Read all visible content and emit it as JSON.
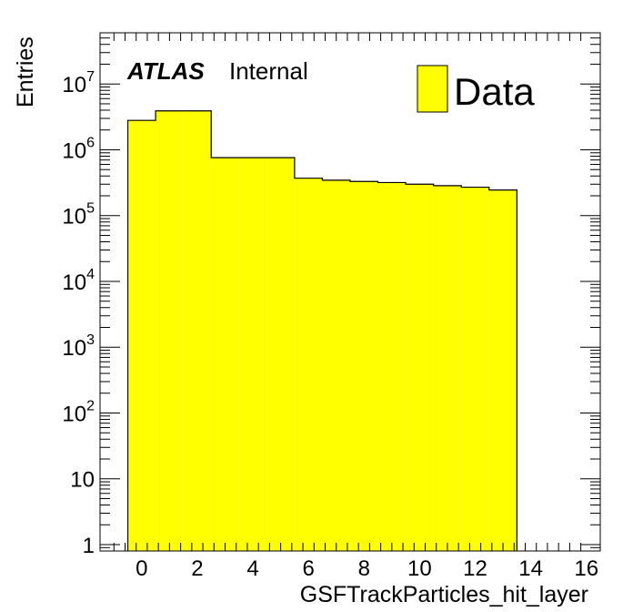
{
  "chart_data": {
    "type": "bar",
    "histogram": true,
    "xlabel": "GSFTrackParticles_hit_layer",
    "ylabel": "Entries",
    "ylog": true,
    "xlim": [
      -1.5,
      16.5
    ],
    "ylim": [
      0.8,
      60000000
    ],
    "x_ticks": [
      0,
      2,
      4,
      6,
      8,
      10,
      12,
      14,
      16
    ],
    "x_tick_labels": [
      "0",
      "2",
      "4",
      "6",
      "8",
      "10",
      "12",
      "14",
      "16"
    ],
    "y_tick_labels": [
      {
        "value": 1,
        "base": "1",
        "exp": ""
      },
      {
        "value": 10,
        "base": "10",
        "exp": ""
      },
      {
        "value": 100,
        "base": "10",
        "exp": "2"
      },
      {
        "value": 1000,
        "base": "10",
        "exp": "3"
      },
      {
        "value": 10000,
        "base": "10",
        "exp": "4"
      },
      {
        "value": 100000,
        "base": "10",
        "exp": "5"
      },
      {
        "value": 1000000,
        "base": "10",
        "exp": "6"
      },
      {
        "value": 10000000,
        "base": "10",
        "exp": "7"
      }
    ],
    "bins": [
      {
        "low": -0.5,
        "high": 0.5,
        "value": 2800000
      },
      {
        "low": 0.5,
        "high": 1.5,
        "value": 3900000
      },
      {
        "low": 1.5,
        "high": 2.5,
        "value": 3900000
      },
      {
        "low": 2.5,
        "high": 3.5,
        "value": 760000
      },
      {
        "low": 3.5,
        "high": 4.5,
        "value": 760000
      },
      {
        "low": 4.5,
        "high": 5.5,
        "value": 760000
      },
      {
        "low": 5.5,
        "high": 6.5,
        "value": 370000
      },
      {
        "low": 6.5,
        "high": 7.5,
        "value": 345000
      },
      {
        "low": 7.5,
        "high": 8.5,
        "value": 330000
      },
      {
        "low": 8.5,
        "high": 9.5,
        "value": 318000
      },
      {
        "low": 9.5,
        "high": 10.5,
        "value": 300000
      },
      {
        "low": 10.5,
        "high": 11.5,
        "value": 285000
      },
      {
        "low": 11.5,
        "high": 12.5,
        "value": 270000
      },
      {
        "low": 12.5,
        "high": 13.5,
        "value": 245000
      }
    ],
    "series": [
      {
        "name": "Data",
        "color": "#ffff00"
      }
    ],
    "legend_position": "top-right",
    "fill_color": "#ffff00",
    "line_color": "#000000"
  },
  "annotation": {
    "experiment": "ATLAS",
    "status": "Internal"
  },
  "legend": {
    "label": "Data"
  }
}
